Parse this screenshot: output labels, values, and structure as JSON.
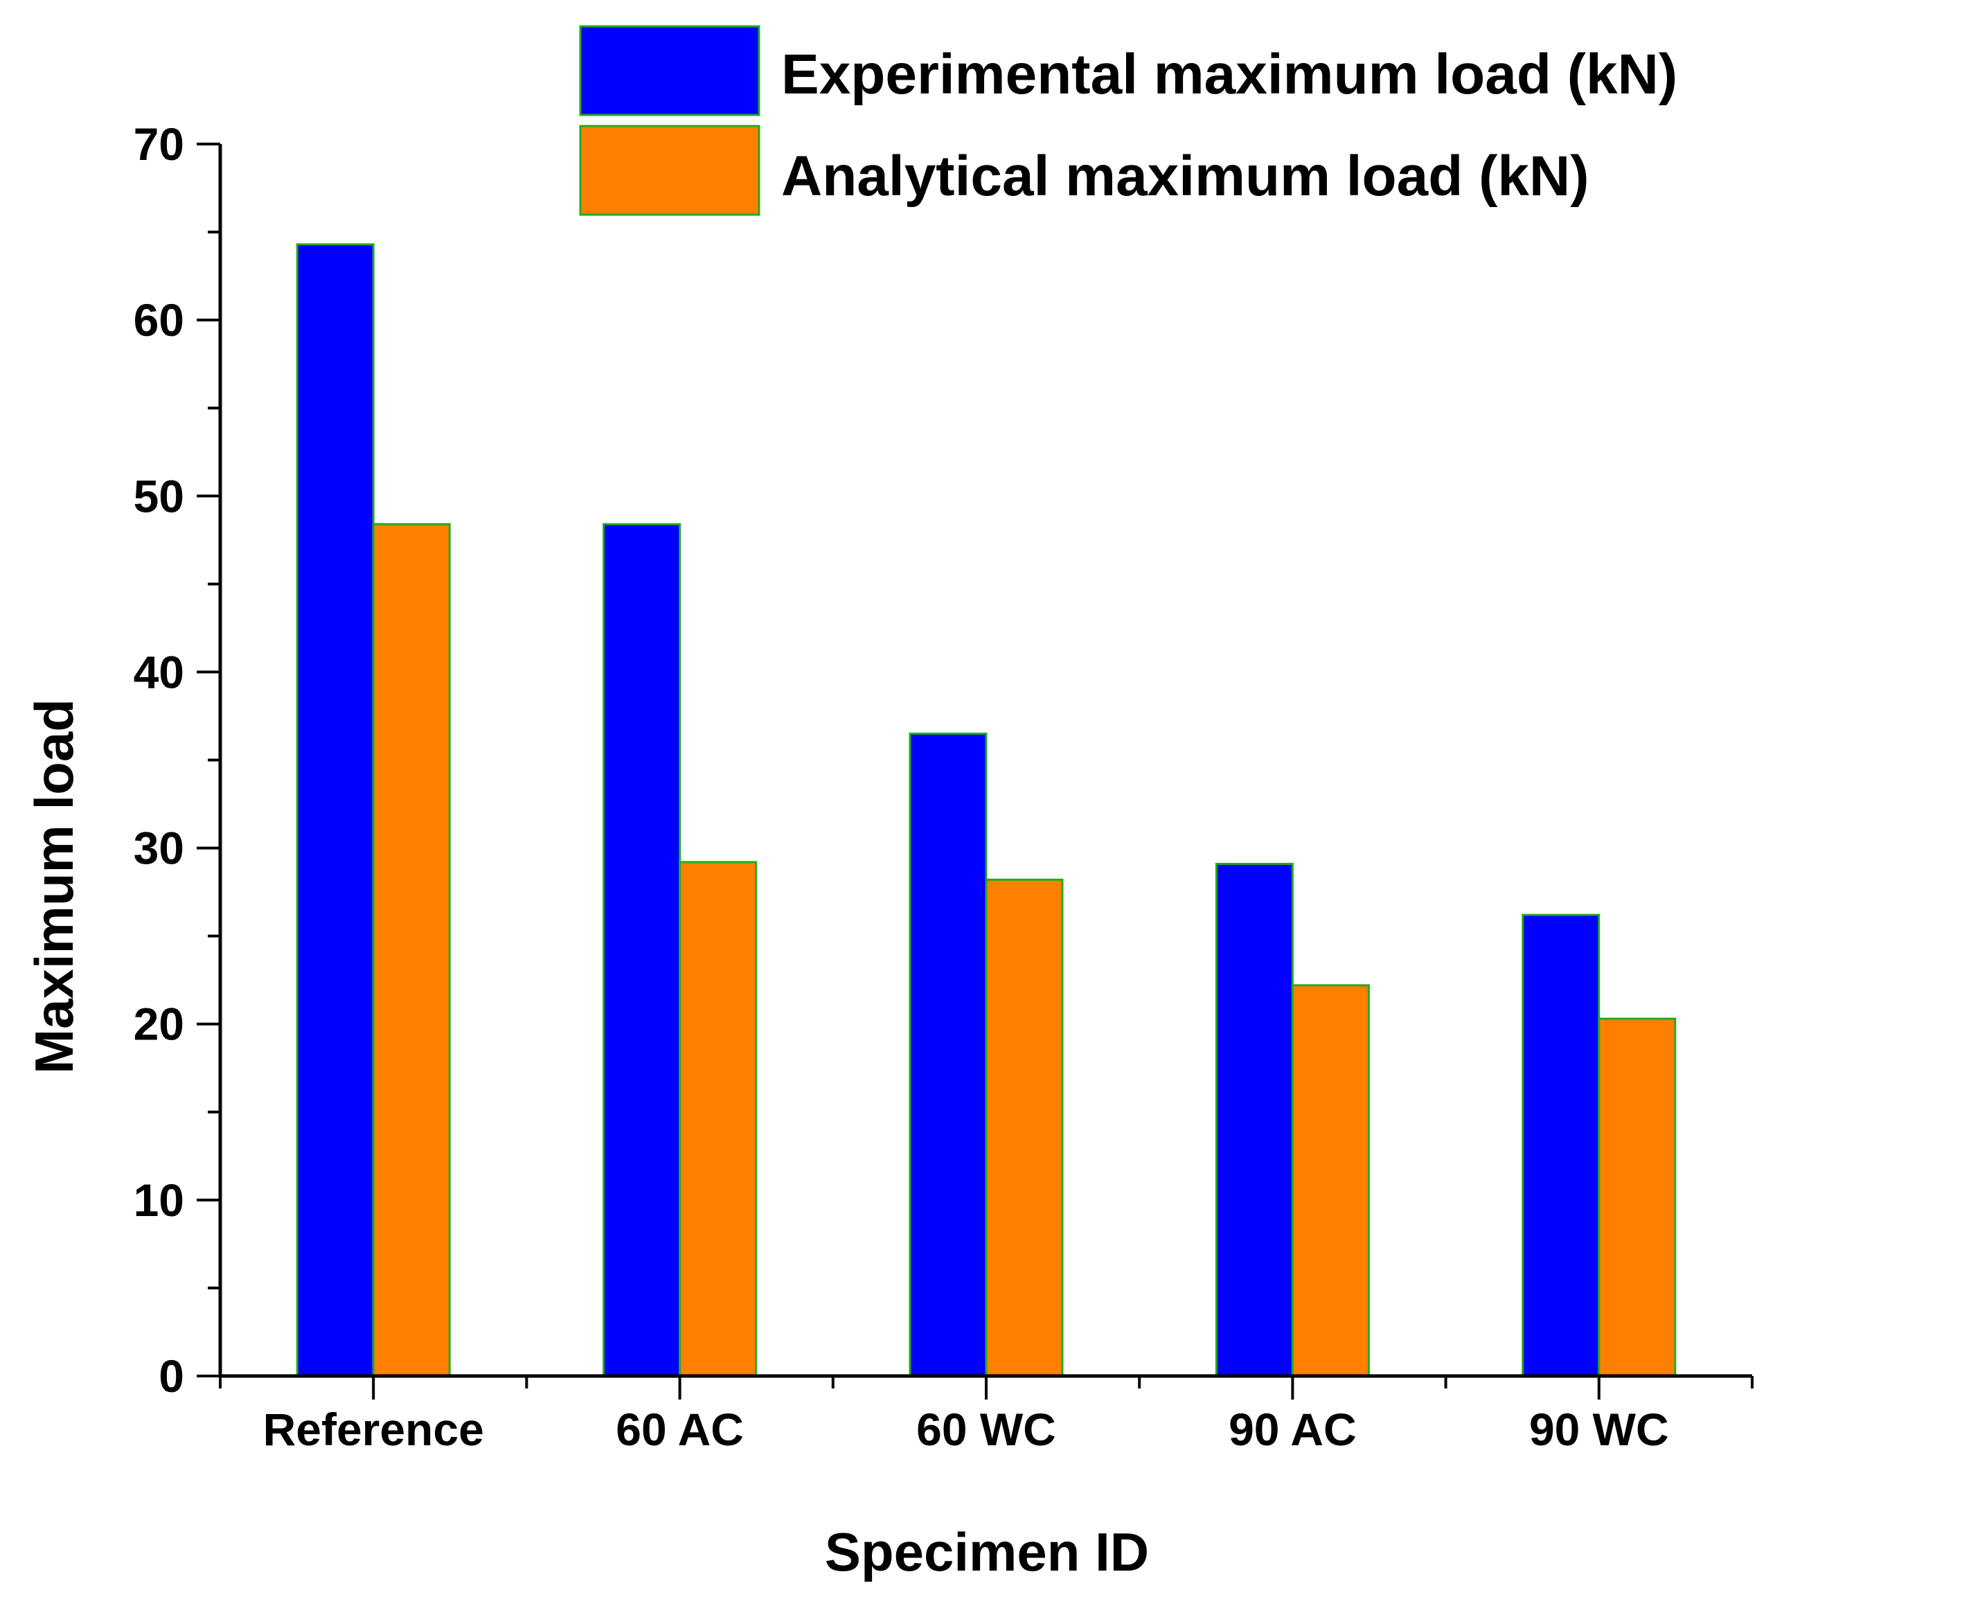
{
  "colors": {
    "experimental": "#0000FF",
    "analytical": "#FF8000",
    "bar_edge": "#22AA22",
    "axis": "#000000",
    "background": "#FFFFFF"
  },
  "chart_data": {
    "type": "bar",
    "title": "",
    "xlabel": "Specimen ID",
    "ylabel": "Maximum load",
    "ylim": [
      0,
      70
    ],
    "y_ticks": [
      0,
      10,
      20,
      30,
      40,
      50,
      60,
      70
    ],
    "y_tick_labels": [
      "0",
      "10",
      "20",
      "30",
      "40",
      "50",
      "60",
      "70"
    ],
    "grid": false,
    "legend_position": "top-right",
    "categories": [
      "Reference",
      "60 AC",
      "60 WC",
      "90 AC",
      "90 WC"
    ],
    "series": [
      {
        "name": "Experimental maximum load (kN)",
        "color": "#0000FF",
        "values": [
          64.3,
          48.4,
          36.5,
          29.1,
          26.2
        ]
      },
      {
        "name": "Analytical maximum load (kN)",
        "color": "#FF8000",
        "values": [
          48.4,
          29.2,
          28.2,
          22.2,
          20.3
        ]
      }
    ]
  }
}
